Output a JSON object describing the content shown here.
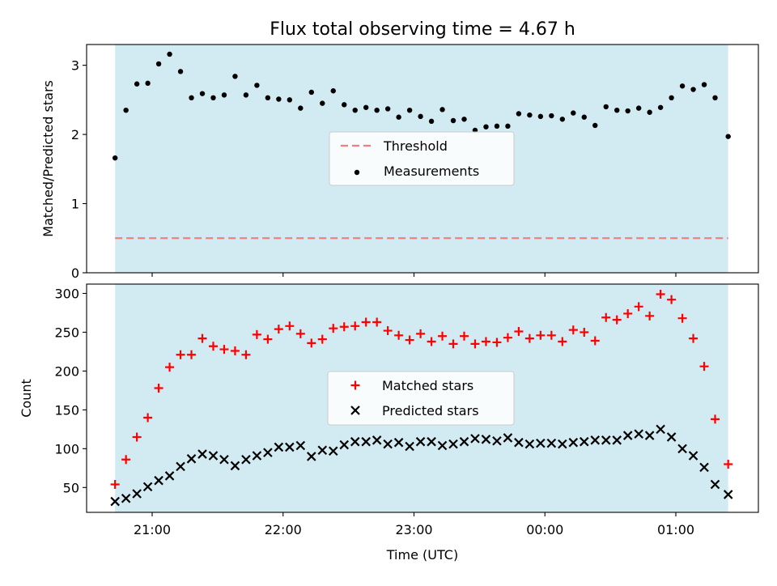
{
  "figure": {
    "title": "Flux total observing time = 4.67 h"
  },
  "chart_data": [
    {
      "type": "scatter",
      "title": "Flux total observing time = 4.67 h",
      "xlabel": "",
      "ylabel": "Matched/Predicted stars",
      "x_start": "20:43",
      "x_end": "01:24",
      "x_ticks": [
        "21:00",
        "22:00",
        "23:00",
        "00:00",
        "01:00"
      ],
      "ylim": [
        0,
        3.3
      ],
      "y_ticks": [
        "0",
        "1",
        "2",
        "3"
      ],
      "grid": false,
      "legend": "center",
      "shaded_region": {
        "from": "20:43",
        "to": "01:24",
        "color": "#add8e6"
      },
      "threshold": {
        "name": "Threshold",
        "value": 0.5,
        "color": "#f08080",
        "style": "dashed"
      },
      "series": [
        {
          "name": "Measurements",
          "color": "#000000",
          "marker": "dot",
          "points": [
            [
              "20:43",
              1.66
            ],
            [
              "20:48",
              2.35
            ],
            [
              "20:53",
              2.73
            ],
            [
              "20:58",
              2.74
            ],
            [
              "21:03",
              3.02
            ],
            [
              "21:08",
              3.16
            ],
            [
              "21:13",
              2.91
            ],
            [
              "21:18",
              2.53
            ],
            [
              "21:23",
              2.59
            ],
            [
              "21:28",
              2.53
            ],
            [
              "21:33",
              2.57
            ],
            [
              "21:38",
              2.84
            ],
            [
              "21:43",
              2.57
            ],
            [
              "21:48",
              2.71
            ],
            [
              "21:53",
              2.53
            ],
            [
              "21:58",
              2.51
            ],
            [
              "22:03",
              2.5
            ],
            [
              "22:08",
              2.38
            ],
            [
              "22:13",
              2.61
            ],
            [
              "22:18",
              2.45
            ],
            [
              "22:23",
              2.63
            ],
            [
              "22:28",
              2.43
            ],
            [
              "22:33",
              2.35
            ],
            [
              "22:38",
              2.39
            ],
            [
              "22:43",
              2.35
            ],
            [
              "22:48",
              2.37
            ],
            [
              "22:53",
              2.25
            ],
            [
              "22:58",
              2.35
            ],
            [
              "23:03",
              2.26
            ],
            [
              "23:08",
              2.19
            ],
            [
              "23:13",
              2.36
            ],
            [
              "23:18",
              2.2
            ],
            [
              "23:23",
              2.22
            ],
            [
              "23:28",
              2.06
            ],
            [
              "23:33",
              2.11
            ],
            [
              "23:38",
              2.12
            ],
            [
              "23:43",
              2.12
            ],
            [
              "23:48",
              2.3
            ],
            [
              "23:53",
              2.28
            ],
            [
              "23:58",
              2.26
            ],
            [
              "00:03",
              2.27
            ],
            [
              "00:08",
              2.22
            ],
            [
              "00:13",
              2.31
            ],
            [
              "00:18",
              2.25
            ],
            [
              "00:23",
              2.13
            ],
            [
              "00:28",
              2.4
            ],
            [
              "00:33",
              2.35
            ],
            [
              "00:38",
              2.34
            ],
            [
              "00:43",
              2.38
            ],
            [
              "00:48",
              2.32
            ],
            [
              "00:53",
              2.39
            ],
            [
              "00:58",
              2.53
            ],
            [
              "01:03",
              2.7
            ],
            [
              "01:08",
              2.65
            ],
            [
              "01:13",
              2.72
            ],
            [
              "01:18",
              2.53
            ],
            [
              "01:24",
              1.97
            ]
          ]
        }
      ]
    },
    {
      "type": "scatter",
      "title": "",
      "xlabel": "Time (UTC)",
      "ylabel": "Count",
      "x_start": "20:43",
      "x_end": "01:24",
      "x_ticks": [
        "21:00",
        "22:00",
        "23:00",
        "00:00",
        "01:00"
      ],
      "ylim": [
        18,
        312
      ],
      "y_ticks": [
        "50",
        "100",
        "150",
        "200",
        "250",
        "300"
      ],
      "grid": false,
      "legend": "center",
      "shaded_region": {
        "from": "20:43",
        "to": "01:24",
        "color": "#add8e6"
      },
      "series": [
        {
          "name": "Matched stars",
          "color": "#ff0000",
          "marker": "plus",
          "points": [
            [
              "20:43",
              54
            ],
            [
              "20:48",
              86
            ],
            [
              "20:53",
              115
            ],
            [
              "20:58",
              140
            ],
            [
              "21:03",
              178
            ],
            [
              "21:08",
              205
            ],
            [
              "21:13",
              221
            ],
            [
              "21:18",
              221
            ],
            [
              "21:23",
              242
            ],
            [
              "21:28",
              232
            ],
            [
              "21:33",
              228
            ],
            [
              "21:38",
              226
            ],
            [
              "21:43",
              221
            ],
            [
              "21:48",
              247
            ],
            [
              "21:53",
              241
            ],
            [
              "21:58",
              254
            ],
            [
              "22:03",
              258
            ],
            [
              "22:08",
              248
            ],
            [
              "22:13",
              236
            ],
            [
              "22:18",
              241
            ],
            [
              "22:23",
              255
            ],
            [
              "22:28",
              257
            ],
            [
              "22:33",
              258
            ],
            [
              "22:38",
              263
            ],
            [
              "22:43",
              263
            ],
            [
              "22:48",
              252
            ],
            [
              "22:53",
              246
            ],
            [
              "22:58",
              240
            ],
            [
              "23:03",
              248
            ],
            [
              "23:08",
              238
            ],
            [
              "23:13",
              245
            ],
            [
              "23:18",
              235
            ],
            [
              "23:23",
              245
            ],
            [
              "23:28",
              235
            ],
            [
              "23:33",
              238
            ],
            [
              "23:38",
              237
            ],
            [
              "23:43",
              243
            ],
            [
              "23:48",
              251
            ],
            [
              "23:53",
              242
            ],
            [
              "23:58",
              246
            ],
            [
              "00:03",
              246
            ],
            [
              "00:08",
              238
            ],
            [
              "00:13",
              253
            ],
            [
              "00:18",
              250
            ],
            [
              "00:23",
              239
            ],
            [
              "00:28",
              269
            ],
            [
              "00:33",
              266
            ],
            [
              "00:38",
              274
            ],
            [
              "00:43",
              283
            ],
            [
              "00:48",
              271
            ],
            [
              "00:53",
              299
            ],
            [
              "00:58",
              292
            ],
            [
              "01:03",
              268
            ],
            [
              "01:08",
              242
            ],
            [
              "01:13",
              206
            ],
            [
              "01:18",
              138
            ],
            [
              "01:24",
              80
            ]
          ]
        },
        {
          "name": "Predicted stars",
          "color": "#000000",
          "marker": "x",
          "points": [
            [
              "20:43",
              32
            ],
            [
              "20:48",
              36
            ],
            [
              "20:53",
              42
            ],
            [
              "20:58",
              51
            ],
            [
              "21:03",
              59
            ],
            [
              "21:08",
              65
            ],
            [
              "21:13",
              77
            ],
            [
              "21:18",
              87
            ],
            [
              "21:23",
              93
            ],
            [
              "21:28",
              91
            ],
            [
              "21:33",
              86
            ],
            [
              "21:38",
              78
            ],
            [
              "21:43",
              86
            ],
            [
              "21:48",
              91
            ],
            [
              "21:53",
              95
            ],
            [
              "21:58",
              102
            ],
            [
              "22:03",
              102
            ],
            [
              "22:08",
              104
            ],
            [
              "22:13",
              90
            ],
            [
              "22:18",
              98
            ],
            [
              "22:23",
              97
            ],
            [
              "22:28",
              105
            ],
            [
              "22:33",
              109
            ],
            [
              "22:38",
              109
            ],
            [
              "22:43",
              111
            ],
            [
              "22:48",
              106
            ],
            [
              "22:53",
              108
            ],
            [
              "22:58",
              103
            ],
            [
              "23:03",
              109
            ],
            [
              "23:08",
              109
            ],
            [
              "23:13",
              104
            ],
            [
              "23:18",
              106
            ],
            [
              "23:23",
              109
            ],
            [
              "23:28",
              113
            ],
            [
              "23:33",
              112
            ],
            [
              "23:38",
              110
            ],
            [
              "23:43",
              114
            ],
            [
              "23:48",
              108
            ],
            [
              "23:53",
              106
            ],
            [
              "23:58",
              107
            ],
            [
              "00:03",
              107
            ],
            [
              "00:08",
              106
            ],
            [
              "00:13",
              108
            ],
            [
              "00:18",
              109
            ],
            [
              "00:23",
              111
            ],
            [
              "00:28",
              111
            ],
            [
              "00:33",
              111
            ],
            [
              "00:38",
              117
            ],
            [
              "00:43",
              119
            ],
            [
              "00:48",
              117
            ],
            [
              "00:53",
              125
            ],
            [
              "00:58",
              115
            ],
            [
              "01:03",
              100
            ],
            [
              "01:08",
              91
            ],
            [
              "01:13",
              76
            ],
            [
              "01:18",
              54
            ],
            [
              "01:24",
              41
            ]
          ]
        }
      ]
    }
  ]
}
